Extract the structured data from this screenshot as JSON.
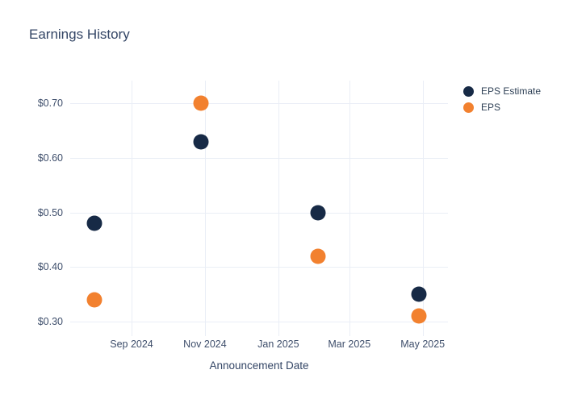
{
  "title": "Earnings History",
  "colors": {
    "estimate": "#172a46",
    "eps": "#f2812f",
    "grid": "#eaeef6",
    "title_text": "#334565",
    "tick_text": "#3e4e6b"
  },
  "legend": {
    "position": "right",
    "items": [
      {
        "label": "EPS Estimate",
        "color_key": "estimate"
      },
      {
        "label": "EPS",
        "color_key": "eps"
      }
    ]
  },
  "chart_data": {
    "type": "scatter",
    "title": "Earnings History",
    "xlabel": "Announcement Date",
    "ylabel": "",
    "grid": true,
    "legend_position": "right",
    "xlim": [
      "2024-07-12",
      "2025-05-22"
    ],
    "ylim": [
      0.273,
      0.742
    ],
    "x_ticks": [
      {
        "date": "2024-09-01",
        "label": "Sep 2024"
      },
      {
        "date": "2024-11-01",
        "label": "Nov 2024"
      },
      {
        "date": "2025-01-01",
        "label": "Jan 2025"
      },
      {
        "date": "2025-03-01",
        "label": "Mar 2025"
      },
      {
        "date": "2025-05-01",
        "label": "May 2025"
      }
    ],
    "y_ticks": [
      {
        "value": 0.3,
        "label": "$0.30"
      },
      {
        "value": 0.4,
        "label": "$0.40"
      },
      {
        "value": 0.5,
        "label": "$0.50"
      },
      {
        "value": 0.6,
        "label": "$0.60"
      },
      {
        "value": 0.7,
        "label": "$0.70"
      }
    ],
    "series": [
      {
        "name": "EPS Estimate",
        "color_key": "estimate",
        "points": [
          {
            "date": "2024-08-01",
            "value": 0.48
          },
          {
            "date": "2024-10-29",
            "value": 0.63
          },
          {
            "date": "2025-02-03",
            "value": 0.5
          },
          {
            "date": "2025-04-28",
            "value": 0.35
          }
        ]
      },
      {
        "name": "EPS",
        "color_key": "eps",
        "points": [
          {
            "date": "2024-08-01",
            "value": 0.34
          },
          {
            "date": "2024-10-29",
            "value": 0.7
          },
          {
            "date": "2025-02-03",
            "value": 0.42
          },
          {
            "date": "2025-04-28",
            "value": 0.31
          }
        ]
      }
    ]
  }
}
